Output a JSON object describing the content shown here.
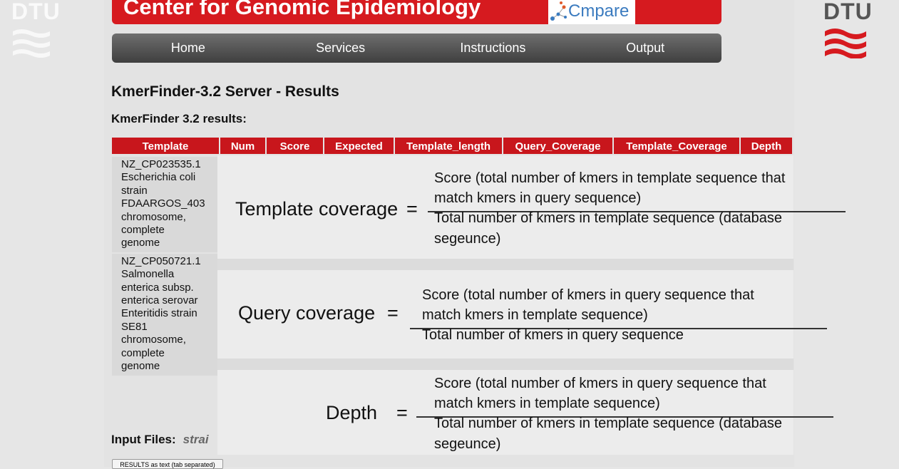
{
  "logos": {
    "left_text": "DTU",
    "right_text": "DTU"
  },
  "banner": {
    "title": "Center for Genomic Epidemiology",
    "compare_logo_text": "Cmpare"
  },
  "nav": {
    "items": [
      "Home",
      "Services",
      "Instructions",
      "Output"
    ]
  },
  "page": {
    "title": "KmerFinder-3.2 Server - Results",
    "subtitle": "KmerFinder 3.2 results:"
  },
  "table": {
    "headers": [
      "Template",
      "Num",
      "Score",
      "Expected",
      "Template_length",
      "Query_Coverage",
      "Template_Coverage",
      "Depth"
    ],
    "rows": [
      {
        "template": [
          "NZ_CP023535.1",
          "Escherichia coli",
          "strain",
          "FDAARGOS_403",
          "chromosome,",
          "complete",
          "genome"
        ]
      },
      {
        "template": [
          "NZ_CP050721.1",
          "Salmonella",
          "enterica subsp.",
          "enterica serovar",
          "Enteritidis strain",
          "SE81",
          "chromosome,",
          "complete",
          "genome"
        ]
      }
    ]
  },
  "formulas": {
    "template_coverage": {
      "label": "Template coverage",
      "eq": "=",
      "numerator": [
        "Score (total number of kmers in template sequence that",
        "match kmers in query sequence)"
      ],
      "denominator": [
        "Total number of kmers in template sequence (database",
        "segeunce)"
      ]
    },
    "query_coverage": {
      "label": "Query coverage",
      "eq": "=",
      "numerator": [
        "Score (total number of kmers in query sequence that",
        "match kmers in template sequence)"
      ],
      "denominator": [
        "Total number of kmers in query sequence"
      ]
    },
    "depth": {
      "label": "Depth",
      "eq": "=",
      "numerator": [
        "Score (total number of kmers in query sequence that",
        "match kmers in template sequence)"
      ],
      "denominator": [
        "Total number of kmers in template sequence (database",
        "segeunce)"
      ]
    }
  },
  "input_files": {
    "label": "Input Files:",
    "value": "strai"
  },
  "results_button": {
    "label": "RESULTS as text (tab separated)"
  },
  "colors": {
    "banner_red": "#d61a1f",
    "header_red": "#c8161c",
    "nav_dark": "#4a4a4a"
  }
}
